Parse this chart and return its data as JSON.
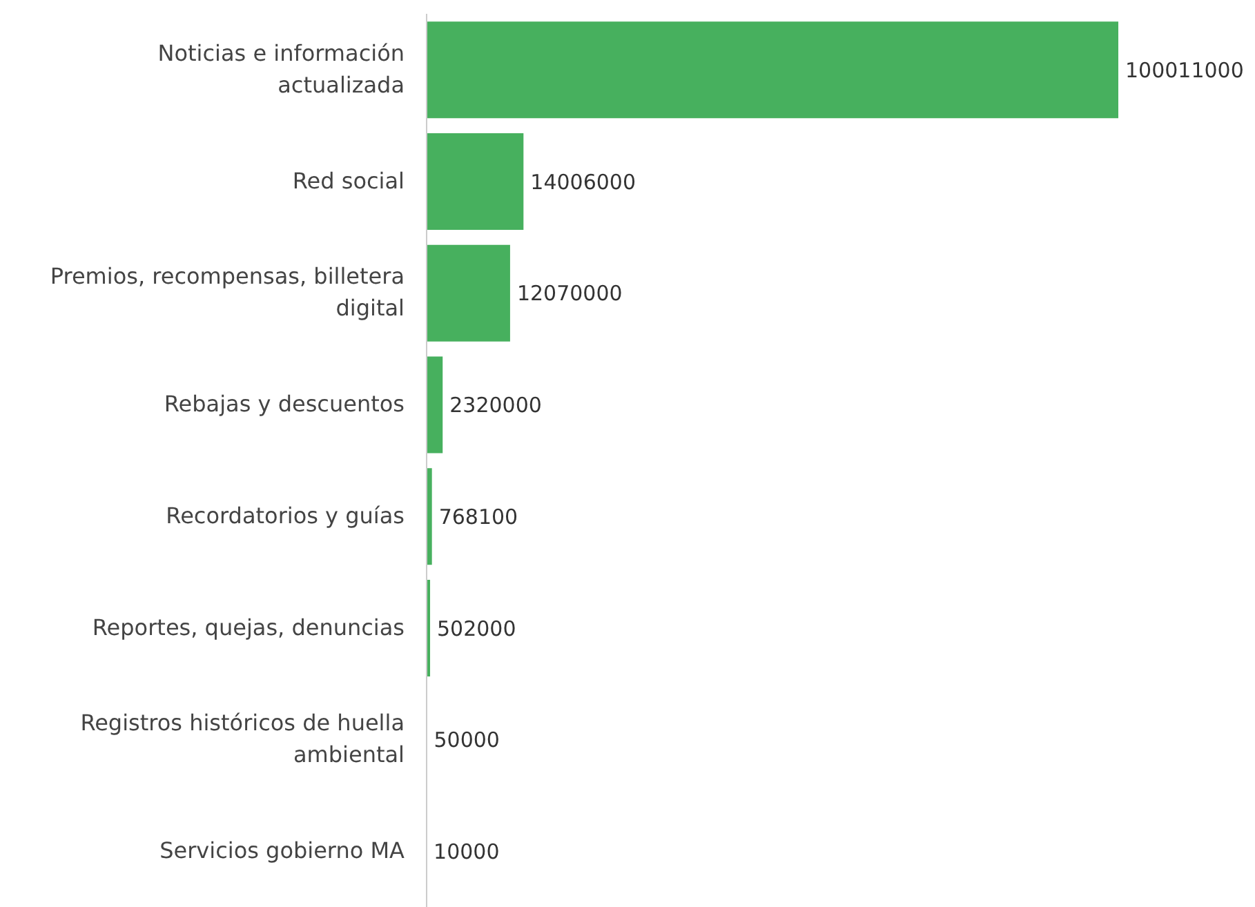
{
  "chart_data": {
    "type": "bar",
    "orientation": "horizontal",
    "categories": [
      "Noticias e información actualizada",
      "Red social",
      "Premios, recompensas, billetera digital",
      "Rebajas y descuentos",
      "Recordatorios y guías",
      "Reportes, quejas, denuncias",
      "Registros históricos de huella ambiental",
      "Servicios gobierno MA"
    ],
    "values": [
      100011000,
      14006000,
      12070000,
      2320000,
      768100,
      502000,
      50000,
      10000
    ],
    "color": "#47b05e",
    "data_labels": true,
    "grid": false,
    "legend": false,
    "tick_labels": "y"
  }
}
